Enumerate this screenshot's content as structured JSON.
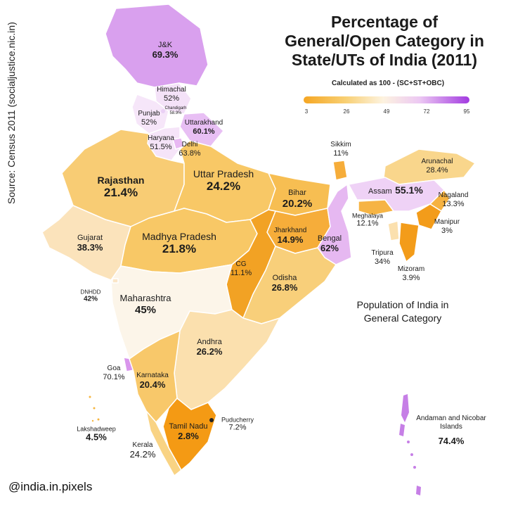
{
  "title_lines": [
    "Percentage of",
    "General/Open Category in",
    "State/UTs of India (2011)"
  ],
  "subtitle": "Calculated as 100 - (SC+ST+OBC)",
  "source": "Source: Census 2011 (socialjustice.nic.in)",
  "legend": {
    "ticks": [
      "3",
      "26",
      "49",
      "72",
      "95"
    ],
    "low_color": "#f5a623",
    "mid_color": "#fdf3e0",
    "high_color": "#a23ae0"
  },
  "note_lines": [
    "Population of India in",
    "General Category"
  ],
  "handle": "@india.in.pixels",
  "regions": {
    "jk": {
      "name": "J&K",
      "value": "69.3%"
    },
    "himachal": {
      "name": "Himachal",
      "value": "52%"
    },
    "chandigarh": {
      "name": "Chandigarh",
      "value": "58.9%"
    },
    "punjab": {
      "name": "Punjab",
      "value": "52%"
    },
    "uttarakhand": {
      "name": "Uttarakhand",
      "value": "60.1%"
    },
    "haryana": {
      "name": "Haryana",
      "value": "51.5%"
    },
    "delhi": {
      "name": "Delhi",
      "value": "63.8%"
    },
    "rajasthan": {
      "name": "Rajasthan",
      "value": "21.4%"
    },
    "uttar_pradesh": {
      "name": "Uttar Pradesh",
      "value": "24.2%"
    },
    "bihar": {
      "name": "Bihar",
      "value": "20.2%"
    },
    "sikkim": {
      "name": "Sikkim",
      "value": "11%"
    },
    "arunachal": {
      "name": "Arunachal",
      "value": "28.4%"
    },
    "assam": {
      "name": "Assam",
      "value": "55.1%"
    },
    "nagaland": {
      "name": "Nagaland",
      "value": "13.3%"
    },
    "meghalaya": {
      "name": "Meghalaya",
      "value": "12.1%"
    },
    "manipur": {
      "name": "Manipur",
      "value": "3%"
    },
    "tripura": {
      "name": "Tripura",
      "value": "34%"
    },
    "mizoram": {
      "name": "Mizoram",
      "value": "3.9%"
    },
    "gujarat": {
      "name": "Gujarat",
      "value": "38.3%"
    },
    "madhya_pradesh": {
      "name": "Madhya Pradesh",
      "value": "21.8%"
    },
    "jharkhand": {
      "name": "Jharkhand",
      "value": "14.9%"
    },
    "bengal": {
      "name": "Bengal",
      "value": "62%"
    },
    "cg": {
      "name": "CG",
      "value": "11.1%"
    },
    "odisha": {
      "name": "Odisha",
      "value": "26.8%"
    },
    "dnhdd": {
      "name": "DNHDD",
      "value": "42%"
    },
    "maharashtra": {
      "name": "Maharashtra",
      "value": "45%"
    },
    "andhra": {
      "name": "Andhra",
      "value": "26.2%"
    },
    "goa": {
      "name": "Goa",
      "value": "70.1%"
    },
    "karnataka": {
      "name": "Karnataka",
      "value": "20.4%"
    },
    "lakshadweep": {
      "name": "Lakshadweep",
      "value": "4.5%"
    },
    "kerala": {
      "name": "Kerala",
      "value": "24.2%"
    },
    "tamil_nadu": {
      "name": "Tamil Nadu",
      "value": "2.8%"
    },
    "puducherry": {
      "name": "Puducherry",
      "value": "7.2%"
    },
    "andaman": {
      "name": "Andaman and Nicobar Islands",
      "value": "74.4%"
    }
  }
}
